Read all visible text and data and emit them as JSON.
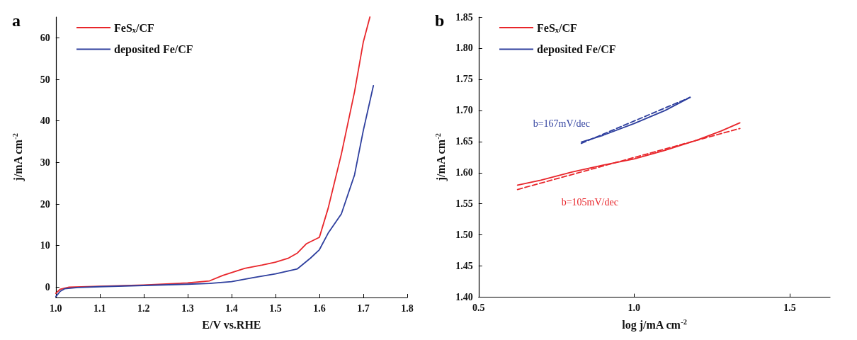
{
  "chart_data": [
    {
      "type": "line",
      "title": "a",
      "xlabel": "E/V vs.RHE",
      "ylabel": "j/mA cm$^{-2}$",
      "xlim": [
        1.0,
        1.8
      ],
      "ylim": [
        -2.5,
        65
      ],
      "xticks": [
        {
          "value": 1.0,
          "label": "1.0"
        },
        {
          "value": 1.1,
          "label": "1.1"
        },
        {
          "value": 1.2,
          "label": "1.2"
        },
        {
          "value": 1.3,
          "label": "1.3"
        },
        {
          "value": 1.4,
          "label": "1.4"
        },
        {
          "value": 1.5,
          "label": "1.5"
        },
        {
          "value": 1.6,
          "label": "1.6"
        },
        {
          "value": 1.7,
          "label": "1.7"
        },
        {
          "value": 1.8,
          "label": "1.8"
        }
      ],
      "yticks": [
        0,
        10,
        20,
        30,
        40,
        50,
        60
      ],
      "grid": false,
      "legend": "top left",
      "marker": "none",
      "line_style": "solid",
      "series": [
        {
          "name": "FeS$_{x}$/CF",
          "color": "#e8262b",
          "x": [
            1.0,
            1.01,
            1.03,
            1.1,
            1.2,
            1.3,
            1.35,
            1.38,
            1.4,
            1.43,
            1.47,
            1.5,
            1.53,
            1.55,
            1.57,
            1.6,
            1.62,
            1.65,
            1.68,
            1.7,
            1.715
          ],
          "values": [
            -1.5,
            -0.5,
            0,
            0.2,
            0.5,
            1.0,
            1.5,
            2.8,
            3.5,
            4.5,
            5.3,
            6,
            7,
            8.2,
            10.4,
            12,
            19,
            32,
            47,
            59,
            65
          ]
        },
        {
          "name": "deposited Fe/CF",
          "color": "#2e3f9e",
          "x": [
            1.0,
            1.01,
            1.02,
            1.05,
            1.1,
            1.2,
            1.3,
            1.35,
            1.4,
            1.45,
            1.5,
            1.55,
            1.58,
            1.6,
            1.62,
            1.65,
            1.68,
            1.7,
            1.723
          ],
          "values": [
            -2.3,
            -1,
            -0.4,
            -0.1,
            0.1,
            0.4,
            0.7,
            0.9,
            1.3,
            2.3,
            3.2,
            4.4,
            7,
            9,
            13,
            17.6,
            27,
            37.7,
            48.5
          ]
        }
      ]
    },
    {
      "type": "line",
      "title": "b",
      "xlabel": "log j/mA cm$^{-2}$",
      "ylabel": "j/mA cm$^{-2}$",
      "xlim": [
        0.5,
        1.63
      ],
      "ylim": [
        1.4,
        1.85
      ],
      "xticks": [
        {
          "value": 0.5,
          "label": "0.5"
        },
        {
          "value": 1.0,
          "label": "1.0"
        },
        {
          "value": 1.5,
          "label": "1.5"
        }
      ],
      "yticks": [
        {
          "value": 1.4,
          "label": "1.40"
        },
        {
          "value": 1.45,
          "label": "1.45"
        },
        {
          "value": 1.5,
          "label": "1.50"
        },
        {
          "value": 1.55,
          "label": "1.55"
        },
        {
          "value": 1.6,
          "label": "1.60"
        },
        {
          "value": 1.65,
          "label": "1.65"
        },
        {
          "value": 1.7,
          "label": "1.70"
        },
        {
          "value": 1.75,
          "label": "1.75"
        },
        {
          "value": 1.8,
          "label": "1.80"
        },
        {
          "value": 1.85,
          "label": "1.85"
        }
      ],
      "grid": false,
      "legend": "top left",
      "marker": "none",
      "annotations": [
        "b=105mV/dec",
        "b=167mV/dec"
      ],
      "series": [
        {
          "name": "FeS$_{x}$/CF",
          "color": "#e8262b",
          "line_style": "solid",
          "x": [
            0.625,
            0.7,
            0.8,
            0.9,
            1.0,
            1.1,
            1.2,
            1.28,
            1.34
          ],
          "values": [
            1.58,
            1.588,
            1.601,
            1.612,
            1.622,
            1.636,
            1.652,
            1.667,
            1.68
          ]
        },
        {
          "name": "deposited Fe/CF",
          "color": "#2e3f9e",
          "line_style": "solid",
          "x": [
            0.83,
            0.9,
            1.0,
            1.1,
            1.18
          ],
          "values": [
            1.649,
            1.66,
            1.679,
            1.7,
            1.721
          ]
        },
        {
          "color": "#2e3f9e",
          "line_style": "dashed",
          "x": [
            0.83,
            1.18
          ],
          "values": [
            1.647,
            1.721
          ]
        },
        {
          "color": "#e8262b",
          "line_style": "dashed",
          "x": [
            0.625,
            1.34
          ],
          "values": [
            1.573,
            1.671
          ]
        }
      ]
    }
  ]
}
